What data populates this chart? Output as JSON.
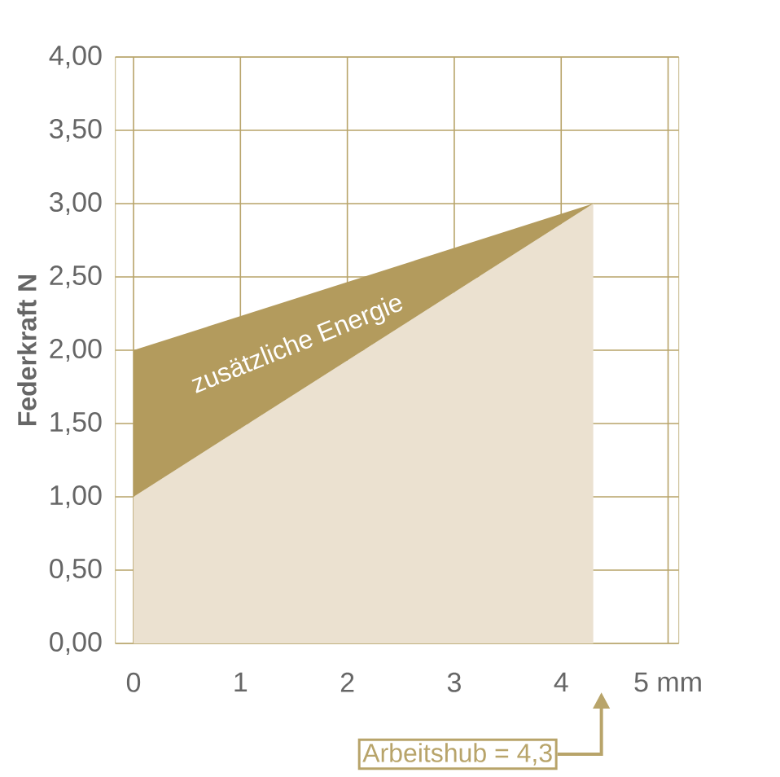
{
  "chart_data": {
    "type": "area",
    "stacked": true,
    "ylabel": "Federkraft N",
    "x": [
      0,
      4.3
    ],
    "series": [
      {
        "color": "#ebe1d0",
        "values": [
          1.0,
          3.0
        ]
      },
      {
        "name": "zusätzliche Energie",
        "color": "#b39b5d",
        "values": [
          1.0,
          0.0
        ]
      }
    ],
    "xlim": [
      -0.17,
      5.1
    ],
    "ylim": [
      0,
      4
    ],
    "xticks": [
      0,
      1,
      2,
      3,
      4,
      {
        "value": 5,
        "label": "5 mm"
      }
    ],
    "yticks": [
      {
        "value": 0,
        "label": "0,00"
      },
      {
        "value": 0.5,
        "label": "0,50"
      },
      {
        "value": 1,
        "label": "1,00"
      },
      {
        "value": 1.5,
        "label": "1,50"
      },
      {
        "value": 2,
        "label": "2,00"
      },
      {
        "value": 2.5,
        "label": "2,50"
      },
      {
        "value": 3,
        "label": "3,00"
      },
      {
        "value": 3.5,
        "label": "3,50"
      },
      {
        "value": 4,
        "label": "4,00"
      }
    ],
    "grid": true,
    "annotations": [
      "Arbeitshub = 4,3"
    ]
  }
}
